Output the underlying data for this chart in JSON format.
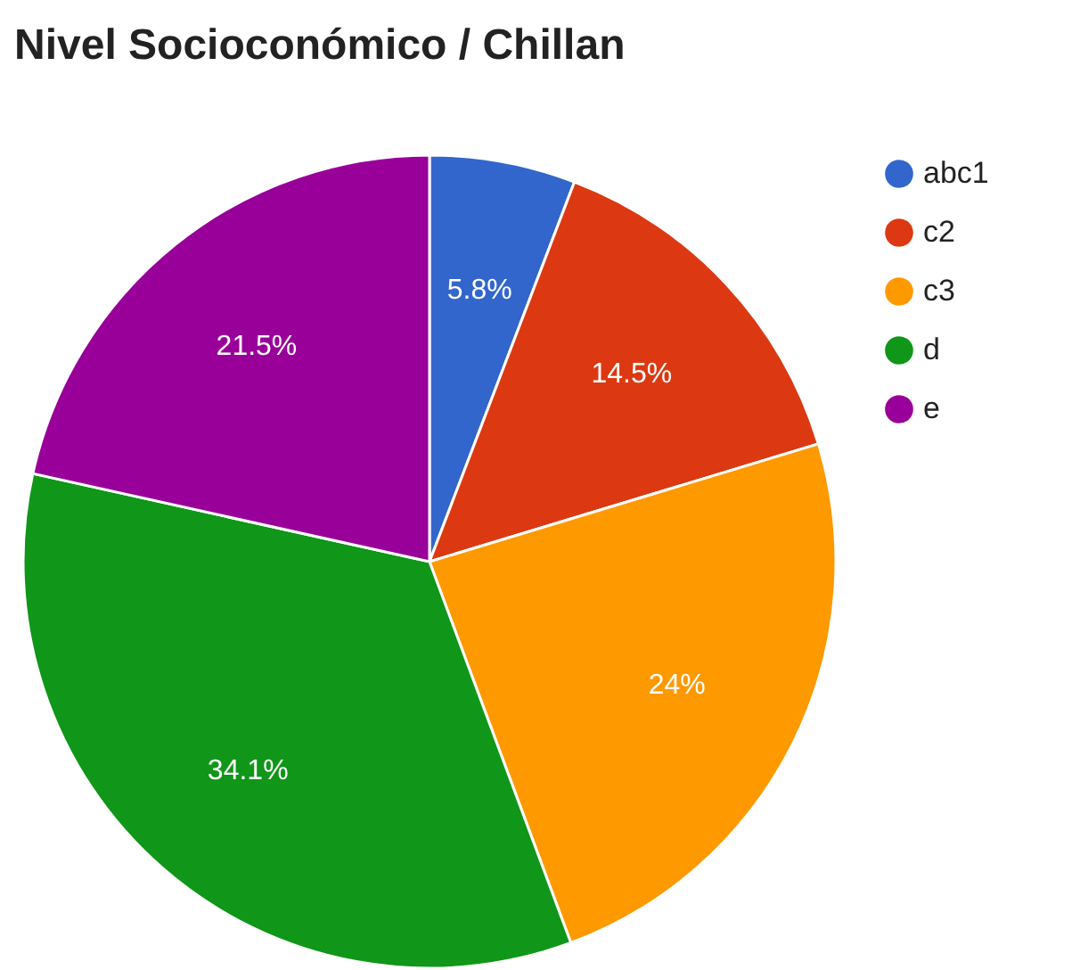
{
  "chart_data": {
    "type": "pie",
    "title": "Nivel Socioconómico / Chillan",
    "categories": [
      "abc1",
      "c2",
      "c3",
      "d",
      "e"
    ],
    "values": [
      5.8,
      14.5,
      24,
      34.1,
      21.5
    ],
    "colors": [
      "#3366cc",
      "#dc3912",
      "#ff9900",
      "#109618",
      "#990099"
    ],
    "value_labels": [
      "5.8%",
      "14.5%",
      "24%",
      "34.1%",
      "21.5%"
    ],
    "legend": "top right"
  }
}
